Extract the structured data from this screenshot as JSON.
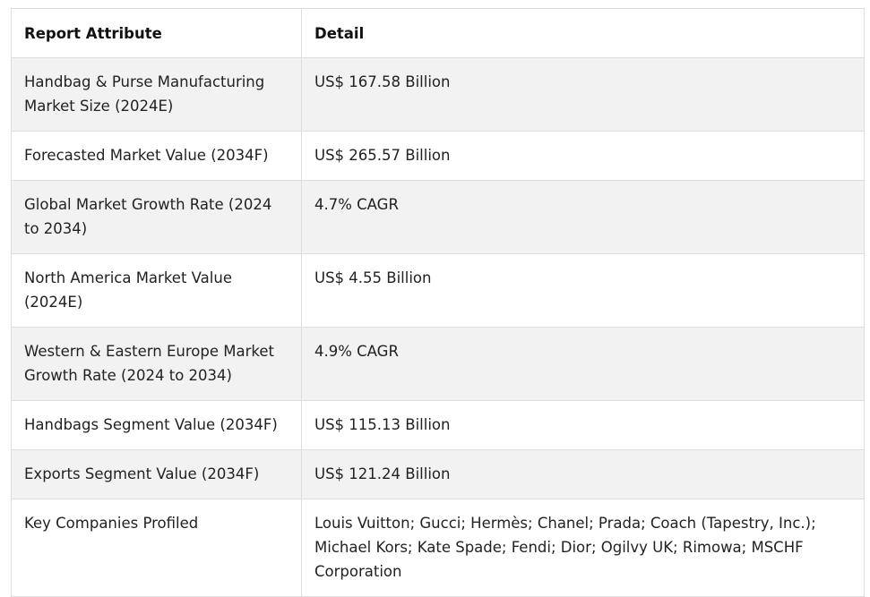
{
  "table": {
    "headers": {
      "attribute": "Report Attribute",
      "detail": "Detail"
    },
    "rows": [
      {
        "attribute": "Handbag & Purse Manufacturing Market Size (2024E)",
        "detail": "US$ 167.58 Billion"
      },
      {
        "attribute": "Forecasted Market Value (2034F)",
        "detail": "US$ 265.57 Billion"
      },
      {
        "attribute": "Global Market Growth Rate (2024 to 2034)",
        "detail": "4.7% CAGR"
      },
      {
        "attribute": "North America Market Value (2024E)",
        "detail": "US$ 4.55 Billion"
      },
      {
        "attribute": "Western & Eastern Europe Market Growth Rate (2024 to 2034)",
        "detail": "4.9% CAGR"
      },
      {
        "attribute": "Handbags Segment Value (2034F)",
        "detail": "US$ 115.13 Billion"
      },
      {
        "attribute": "Exports Segment Value (2034F)",
        "detail": "US$ 121.24 Billion"
      },
      {
        "attribute": "Key Companies Profiled",
        "detail": "Louis Vuitton; Gucci; Hermès; Chanel; Prada; Coach (Tapestry, Inc.); Michael Kors; Kate Spade; Fendi; Dior; Ogilvy UK; Rimowa; MSCHF Corporation"
      }
    ]
  }
}
